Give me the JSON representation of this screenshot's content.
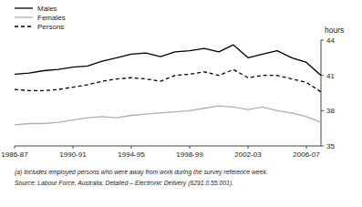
{
  "chart_data": {
    "type": "line",
    "y_label": "hours",
    "x": [
      1986,
      1987,
      1988,
      1989,
      1990,
      1991,
      1992,
      1993,
      1994,
      1995,
      1996,
      1997,
      1998,
      1999,
      2000,
      2001,
      2002,
      2003,
      2004,
      2005,
      2006,
      2007
    ],
    "series": [
      {
        "name": "Males",
        "color": "#000000",
        "values": [
          41.1,
          41.2,
          41.4,
          41.5,
          41.7,
          41.8,
          42.2,
          42.5,
          42.8,
          42.9,
          42.6,
          43.0,
          43.1,
          43.3,
          43.0,
          43.6,
          42.5,
          42.8,
          43.1,
          42.5,
          42.1,
          41.0
        ]
      },
      {
        "name": "Females",
        "color": "#b0b0b0",
        "values": [
          36.8,
          36.9,
          36.9,
          37.0,
          37.2,
          37.4,
          37.5,
          37.4,
          37.6,
          37.7,
          37.8,
          37.9,
          38.0,
          38.2,
          38.4,
          38.3,
          38.1,
          38.3,
          38.0,
          37.8,
          37.5,
          37.0
        ]
      },
      {
        "name": "Persons",
        "color": "#000000",
        "line_style": "dashed",
        "values": [
          39.8,
          39.7,
          39.7,
          39.8,
          40.0,
          40.2,
          40.5,
          40.7,
          40.8,
          40.7,
          40.5,
          41.0,
          41.1,
          41.3,
          41.0,
          41.5,
          40.8,
          41.0,
          41.0,
          40.7,
          40.4,
          39.6
        ]
      }
    ],
    "xlim": [
      1986,
      2007
    ],
    "xticks": [
      {
        "value": 1986,
        "label": "1986-87"
      },
      {
        "value": 1990,
        "label": "1990-91"
      },
      {
        "value": 1994,
        "label": "1994-95"
      },
      {
        "value": 1998,
        "label": "1998-99"
      },
      {
        "value": 2002,
        "label": "2002-03"
      },
      {
        "value": 2006,
        "label": "2006-07"
      }
    ],
    "ylim": [
      35,
      44
    ],
    "yticks": [
      35,
      38,
      41,
      44
    ],
    "grid": false,
    "legend": "top-left",
    "annotations": [
      "(a) Includes employed persons who were away from work during the survey reference week.",
      "Source: Labour Force, Australia, Detailed – Electronic Delivery (6291.0.55.001)."
    ]
  }
}
